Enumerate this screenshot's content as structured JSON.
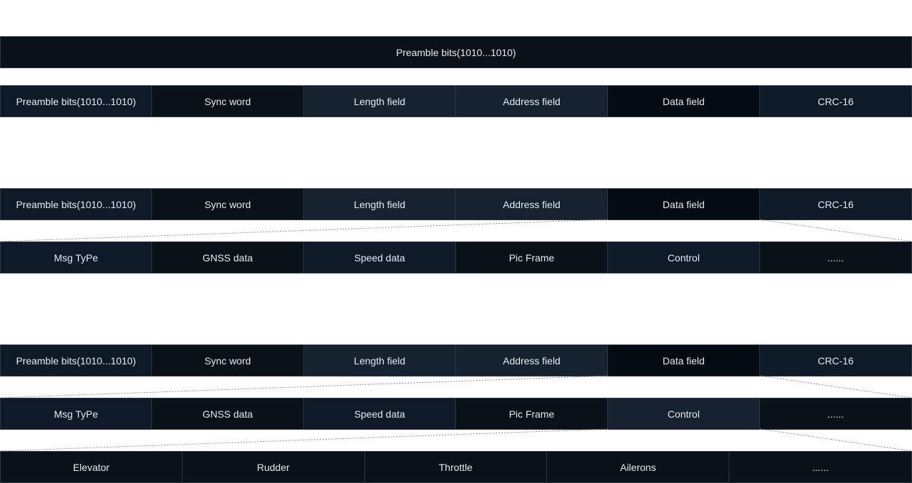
{
  "diagram": {
    "row1": [
      "Preamble bits(1010...1010)"
    ],
    "frame_fields": [
      "Preamble bits(1010...1010)",
      "Sync word",
      "Length field",
      "Address field",
      "Data field",
      "CRC-16"
    ],
    "data_fields": [
      "Msg TyPe",
      "GNSS data",
      "Speed data",
      "Pic Frame",
      "Control",
      "......"
    ],
    "control_fields": [
      "Elevator",
      "Rudder",
      "Throttle",
      "Ailerons",
      "......"
    ],
    "colors": {
      "background": "#ffffff",
      "cell_dark": "#0a1119",
      "cell_mid": "#0e1a28",
      "cell_light": "#16222f",
      "cell_black": "#050b12",
      "text": "#e6ebf0",
      "connector": "#8a8f96"
    }
  }
}
